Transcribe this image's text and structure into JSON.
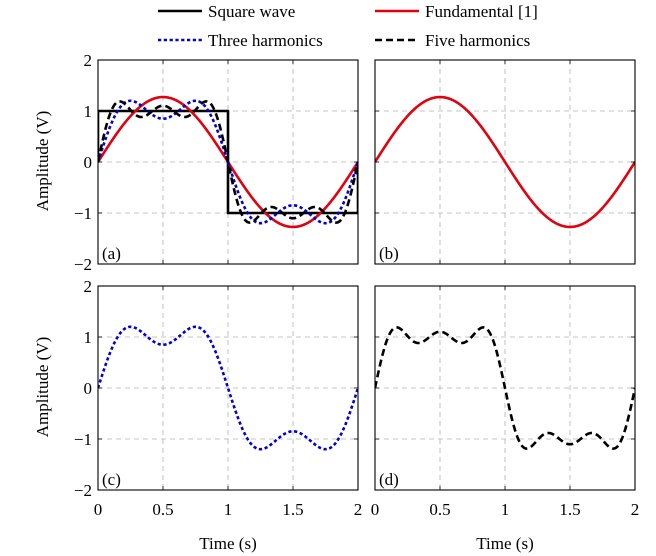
{
  "chart_data": {
    "type": "line",
    "grid": true,
    "legend_placement": "top",
    "legend": [
      {
        "name": "Square wave",
        "color": "#000000",
        "dash": "solid"
      },
      {
        "name": "Fundamental [1]",
        "color": "#e3000f",
        "dash": "solid"
      },
      {
        "name": "Three harmonics",
        "color": "#0000dd",
        "dash": "dotted"
      },
      {
        "name": "Five harmonics",
        "color": "#000000",
        "dash": "dashed"
      }
    ],
    "xlabel": "Time (s)",
    "ylabel": "Amplitude (V)",
    "xlim": [
      0,
      2
    ],
    "ylim": [
      -2,
      2
    ],
    "x_ticks": [
      "0",
      "0.5",
      "1",
      "1.5",
      "2"
    ],
    "y_ticks": [
      "−2",
      "−1",
      "0",
      "1",
      "2"
    ],
    "panels": [
      {
        "label": "(a)",
        "series": [
          "Square wave",
          "Fundamental [1]",
          "Three harmonics",
          "Five harmonics"
        ]
      },
      {
        "label": "(b)",
        "series": [
          "Fundamental [1]"
        ]
      },
      {
        "label": "(c)",
        "series": [
          "Three harmonics"
        ]
      },
      {
        "label": "(d)",
        "series": [
          "Five harmonics"
        ]
      }
    ],
    "series_data": {
      "Square wave": {
        "x": [
          0,
          0,
          1,
          1,
          2,
          2
        ],
        "y": [
          0,
          1,
          1,
          -1,
          -1,
          0
        ]
      },
      "Fundamental [1]": {
        "x": [
          0,
          0.25,
          0.5,
          0.75,
          1,
          1.25,
          1.5,
          1.75,
          2
        ],
        "y": [
          0,
          0.9,
          1.27,
          0.9,
          0,
          -0.9,
          -1.27,
          -0.9,
          0
        ]
      },
      "Three harmonics": {
        "x": [
          0,
          0.25,
          0.5,
          0.75,
          1,
          1.25,
          1.5,
          1.75,
          2
        ],
        "y": [
          0,
          1.2,
          0.85,
          1.2,
          0,
          -1.2,
          -0.85,
          -1.2,
          0
        ]
      },
      "Five harmonics": {
        "x": [
          0,
          0.15,
          0.3,
          0.5,
          0.7,
          0.85,
          1,
          1.15,
          1.3,
          1.5,
          1.7,
          1.85,
          2
        ],
        "y": [
          0,
          1.2,
          0.9,
          1.1,
          0.9,
          1.2,
          0,
          -1.2,
          -0.9,
          -1.1,
          -0.9,
          -1.2,
          0
        ]
      }
    }
  }
}
